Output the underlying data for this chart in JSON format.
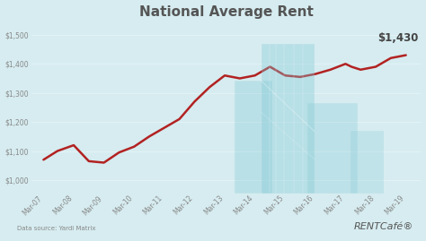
{
  "title": "National Average Rent",
  "title_fontsize": 11,
  "background_color": "#d6ecf0",
  "plot_bg_color": "#d6ecf0",
  "line_color": "#b22222",
  "line_width": 1.8,
  "ylabel_ticks": [
    "$1,000",
    "$1,100",
    "$1,200",
    "$1,300",
    "$1,400",
    "$1,500"
  ],
  "ytick_values": [
    1000,
    1100,
    1200,
    1300,
    1400,
    1500
  ],
  "ylim": [
    960,
    1540
  ],
  "xlim": [
    -0.4,
    12.5
  ],
  "x_labels": [
    "Mar-07",
    "Mar-08",
    "Mar-09",
    "Mar-10",
    "Mar-11",
    "Mar-12",
    "Mar-13",
    "Mar-14",
    "Mar-15",
    "Mar-16",
    "Mar-17",
    "Mar-18",
    "Mar-19"
  ],
  "end_label": "$1,430",
  "data_source": "Data source: Yardi Matrix",
  "brand": "RENTCafé",
  "brand_symbol": "®",
  "x_tick_positions": [
    0,
    1,
    2,
    3,
    4,
    5,
    6,
    7,
    8,
    9,
    10,
    11,
    12
  ],
  "y_values": [
    1070,
    1100,
    1120,
    1065,
    1060,
    1095,
    1115,
    1150,
    1180,
    1210,
    1270,
    1320,
    1360,
    1350,
    1360,
    1390,
    1360,
    1355,
    1365,
    1380,
    1400,
    1390,
    1380,
    1390,
    1420,
    1430
  ],
  "x_fine": [
    0,
    0.46,
    1,
    1.5,
    2,
    2.5,
    3,
    3.5,
    4,
    4.5,
    5,
    5.5,
    6,
    6.5,
    7,
    7.5,
    8,
    8.5,
    9,
    9.5,
    10,
    10.2,
    10.5,
    11,
    11.5,
    12
  ],
  "tick_color": "#888888",
  "tick_fontsize": 5.5,
  "grid_color": "#ffffff",
  "grid_alpha": 0.5,
  "grid_lw": 0.5,
  "building_color": "#7fc8d4",
  "building_alpha": 0.35
}
